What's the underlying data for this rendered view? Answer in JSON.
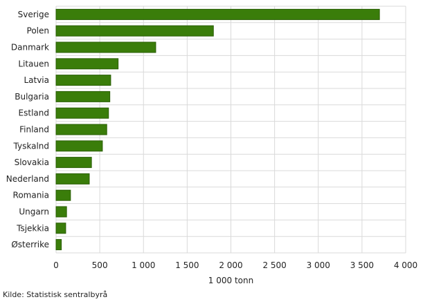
{
  "chart_data": {
    "type": "bar",
    "orientation": "horizontal",
    "title": "",
    "xlabel": "1 000 tonn",
    "ylabel": "",
    "xlim": [
      0,
      4000
    ],
    "xticks": [
      0,
      500,
      1000,
      1500,
      2000,
      2500,
      3000,
      3500,
      4000
    ],
    "xtick_labels": [
      "0",
      "500",
      "1 000",
      "1 500",
      "2 000",
      "2 500",
      "3 000",
      "3 500",
      "4 000"
    ],
    "grid": true,
    "categories": [
      "Sverige",
      "Polen",
      "Danmark",
      "Litauen",
      "Latvia",
      "Bulgaria",
      "Estland",
      "Finland",
      "Tyskalnd",
      "Slovakia",
      "Nederland",
      "Romania",
      "Ungarn",
      "Tsjekkia",
      "Østerrike"
    ],
    "values": [
      3700,
      1800,
      1140,
      710,
      625,
      615,
      600,
      580,
      530,
      405,
      380,
      165,
      120,
      110,
      60
    ],
    "bar_color": "#3a7d0a",
    "bar_edge_color": "#2a5e06"
  },
  "source": "Kilde: Statistisk sentralbyrå"
}
